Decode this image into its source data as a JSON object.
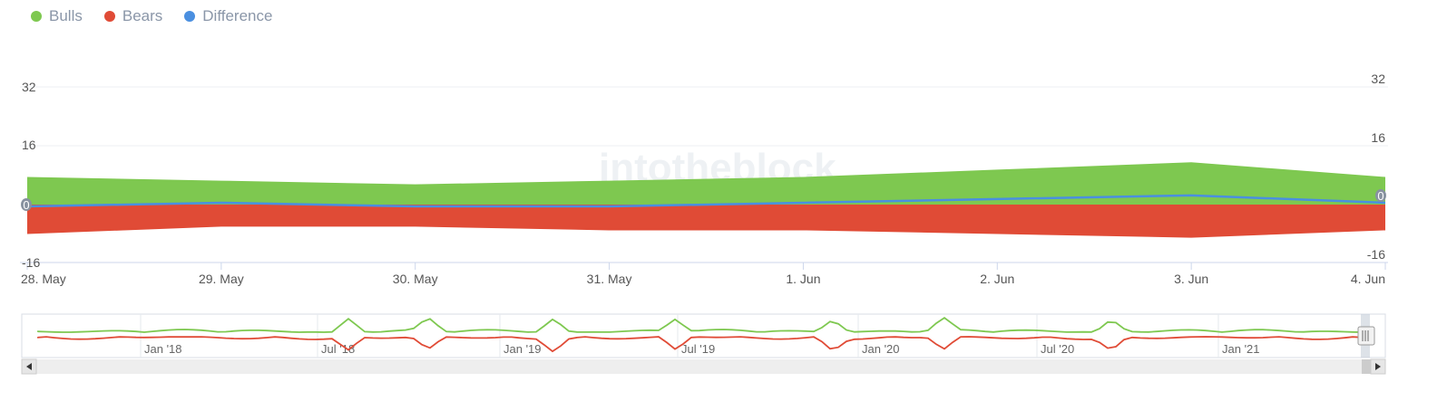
{
  "legend": [
    {
      "label": "Bulls",
      "color": "#7ec850"
    },
    {
      "label": "Bears",
      "color": "#e04b36"
    },
    {
      "label": "Difference",
      "color": "#4a8fe0"
    }
  ],
  "watermark": "intotheblock",
  "chart_data": {
    "type": "area",
    "categories": [
      "28. May",
      "29. May",
      "30. May",
      "31. May",
      "1. Jun",
      "2. Jun",
      "3. Jun",
      "4. Jun"
    ],
    "series": [
      {
        "name": "Bulls",
        "values": [
          7.5,
          6.5,
          5.5,
          6.5,
          7.5,
          9.5,
          11.5,
          7.5
        ],
        "color": "#7ec850"
      },
      {
        "name": "Bears",
        "values": [
          -8,
          -6,
          -6,
          -7,
          -7,
          -8,
          -9,
          -7
        ],
        "color": "#e04b36"
      },
      {
        "name": "Difference",
        "values": [
          -0.5,
          0.5,
          -0.5,
          -0.5,
          0.5,
          1.5,
          2.5,
          0.5
        ],
        "color": "#4a8fe0"
      }
    ],
    "yaxis_left": {
      "ticks": [
        "32",
        "16",
        "0",
        "-16"
      ],
      "range": [
        -16,
        32
      ]
    },
    "yaxis_right": {
      "ticks": [
        "32",
        "16",
        "0",
        "-16"
      ]
    },
    "navigator": {
      "labels": [
        "Jan '18",
        "Jul '18",
        "Jan '19",
        "Jul '19",
        "Jan '20",
        "Jul '20",
        "Jan '21"
      ]
    },
    "grid": true,
    "legend_position": "top-left"
  }
}
